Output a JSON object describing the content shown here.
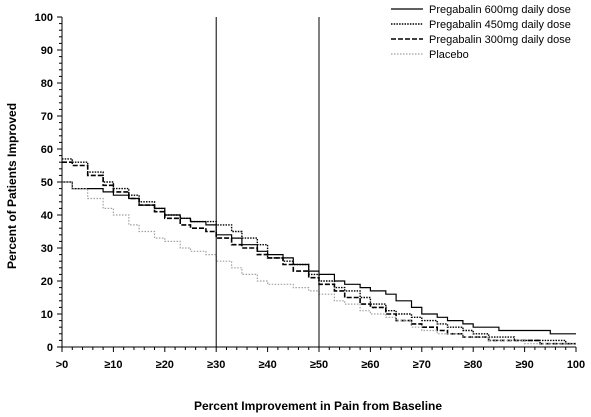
{
  "chart_data": {
    "type": "line",
    "xlabel": "Percent Improvement in Pain from Baseline",
    "ylabel": "Percent of Patients Improved",
    "xlim": [
      0,
      100
    ],
    "ylim": [
      0,
      100
    ],
    "xticks": [
      0,
      10,
      20,
      30,
      40,
      50,
      60,
      70,
      80,
      90,
      100
    ],
    "xtick_labels": [
      ">0",
      "≥10",
      "≥20",
      "≥30",
      "≥40",
      "≥50",
      "≥60",
      "≥70",
      "≥80",
      "≥90",
      "100"
    ],
    "yticks": [
      0,
      10,
      20,
      30,
      40,
      50,
      60,
      70,
      80,
      90,
      100
    ],
    "ytick_labels": [
      "0",
      "10",
      "20",
      "30",
      "40",
      "50",
      "60",
      "70",
      "80",
      "90",
      "100"
    ],
    "reference_lines_x": [
      30,
      50
    ],
    "grid": false,
    "legend_position": "top-right",
    "series": [
      {
        "name": "Pregabalin 600mg daily dose",
        "style": "solid",
        "color": "#000000",
        "x": [
          0,
          2,
          5,
          8,
          10,
          13,
          15,
          18,
          20,
          23,
          25,
          28,
          30,
          33,
          35,
          38,
          40,
          43,
          45,
          48,
          50,
          53,
          55,
          58,
          60,
          63,
          65,
          68,
          70,
          73,
          75,
          78,
          80,
          83,
          85,
          88,
          90,
          93,
          95,
          98,
          100
        ],
        "values": [
          50,
          48,
          48,
          47,
          46,
          45,
          43,
          42,
          40,
          39,
          38,
          37,
          34,
          33,
          31,
          29,
          28,
          27,
          25,
          23,
          22,
          20,
          19,
          18,
          17,
          16,
          14,
          12,
          10,
          9,
          8,
          7,
          6,
          6,
          5,
          5,
          5,
          5,
          4,
          4,
          4
        ]
      },
      {
        "name": "Pregabalin 450mg daily dose",
        "style": "dotted",
        "color": "#000000",
        "x": [
          0,
          2,
          5,
          8,
          10,
          13,
          15,
          18,
          20,
          23,
          25,
          28,
          30,
          33,
          35,
          38,
          40,
          43,
          45,
          48,
          50,
          53,
          55,
          58,
          60,
          63,
          65,
          68,
          70,
          73,
          75,
          78,
          80,
          83,
          85,
          88,
          90,
          93,
          95,
          98,
          100
        ],
        "values": [
          57,
          56,
          53,
          50,
          48,
          46,
          44,
          42,
          40,
          39,
          38,
          38,
          37,
          35,
          33,
          31,
          27,
          26,
          25,
          22,
          20,
          18,
          17,
          15,
          13,
          11,
          10,
          9,
          8,
          7,
          6,
          5,
          4,
          3,
          3,
          2,
          2,
          2,
          2,
          1,
          1
        ]
      },
      {
        "name": "Pregabalin 300mg daily dose",
        "style": "dashed",
        "color": "#000000",
        "x": [
          0,
          2,
          5,
          8,
          10,
          13,
          15,
          18,
          20,
          23,
          25,
          28,
          30,
          33,
          35,
          38,
          40,
          43,
          45,
          48,
          50,
          53,
          55,
          58,
          60,
          63,
          65,
          68,
          70,
          73,
          75,
          78,
          80,
          83,
          85,
          88,
          90,
          93,
          95,
          98,
          100
        ],
        "values": [
          56,
          55,
          52,
          49,
          47,
          45,
          43,
          41,
          39,
          37,
          36,
          35,
          33,
          31,
          30,
          28,
          27,
          25,
          23,
          21,
          19,
          17,
          15,
          13,
          12,
          10,
          8,
          7,
          6,
          5,
          4,
          3,
          3,
          2,
          2,
          2,
          2,
          1,
          1,
          1,
          1
        ]
      },
      {
        "name": "Placebo",
        "style": "dotted-gray",
        "color": "#a0a0a0",
        "x": [
          0,
          2,
          5,
          8,
          10,
          13,
          15,
          18,
          20,
          23,
          25,
          28,
          30,
          33,
          35,
          38,
          40,
          43,
          45,
          48,
          50,
          53,
          55,
          58,
          60,
          63,
          65,
          68,
          70,
          73,
          75,
          78,
          80,
          83,
          85,
          88,
          90,
          93,
          95,
          98,
          100
        ],
        "values": [
          50,
          48,
          45,
          42,
          40,
          37,
          35,
          33,
          32,
          30,
          29,
          28,
          26,
          24,
          22,
          20,
          19,
          19,
          18,
          17,
          16,
          14,
          13,
          11,
          10,
          9,
          8,
          6,
          5,
          4,
          4,
          3,
          3,
          2,
          2,
          2,
          1,
          1,
          1,
          1,
          1
        ]
      }
    ]
  }
}
